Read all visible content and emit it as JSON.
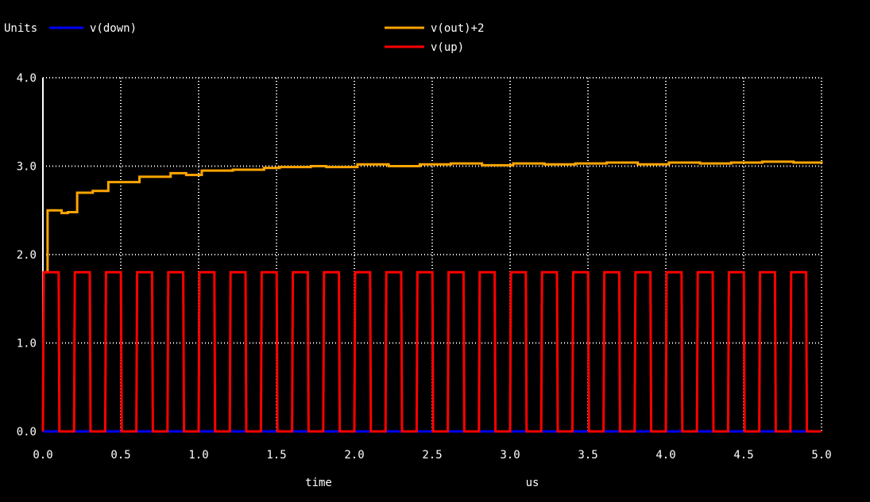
{
  "chart_data": {
    "type": "line",
    "ylabel": "Units",
    "xlabel": "time",
    "xunit": "us",
    "xlim": [
      0.0,
      5.0
    ],
    "ylim": [
      0.0,
      4.0
    ],
    "xticks": [
      "0.0",
      "0.5",
      "1.0",
      "1.5",
      "2.0",
      "2.5",
      "3.0",
      "3.5",
      "4.0",
      "4.5",
      "5.0"
    ],
    "yticks": [
      "0.0",
      "1.0",
      "2.0",
      "3.0",
      "4.0"
    ],
    "grid": true,
    "background": "#000000",
    "series": [
      {
        "name": "v(down)",
        "color": "#0000ff",
        "kind": "constant",
        "level": 0.0
      },
      {
        "name": "v(out)+2",
        "color": "#ffa500",
        "kind": "step",
        "x": [
          0.0,
          0.03,
          0.12,
          0.16,
          0.22,
          0.32,
          0.42,
          0.62,
          0.82,
          0.92,
          1.02,
          1.22,
          1.42,
          1.52,
          1.72,
          1.82,
          2.02,
          2.22,
          2.42,
          2.62,
          2.82,
          3.02,
          3.22,
          3.42,
          3.62,
          3.82,
          4.02,
          4.22,
          4.42,
          4.62,
          4.82,
          5.0
        ],
        "y": [
          1.8,
          2.5,
          2.47,
          2.48,
          2.7,
          2.72,
          2.82,
          2.88,
          2.92,
          2.9,
          2.95,
          2.96,
          2.98,
          2.99,
          3.0,
          2.99,
          3.02,
          3.0,
          3.02,
          3.03,
          3.01,
          3.03,
          3.02,
          3.03,
          3.04,
          3.02,
          3.04,
          3.03,
          3.04,
          3.05,
          3.04,
          3.03
        ]
      },
      {
        "name": "v(up)",
        "color": "#ff0000",
        "kind": "pulse",
        "period": 0.2,
        "high": 1.8,
        "low": 0.0,
        "high_fraction": 0.48,
        "cycles": 25
      }
    ]
  }
}
